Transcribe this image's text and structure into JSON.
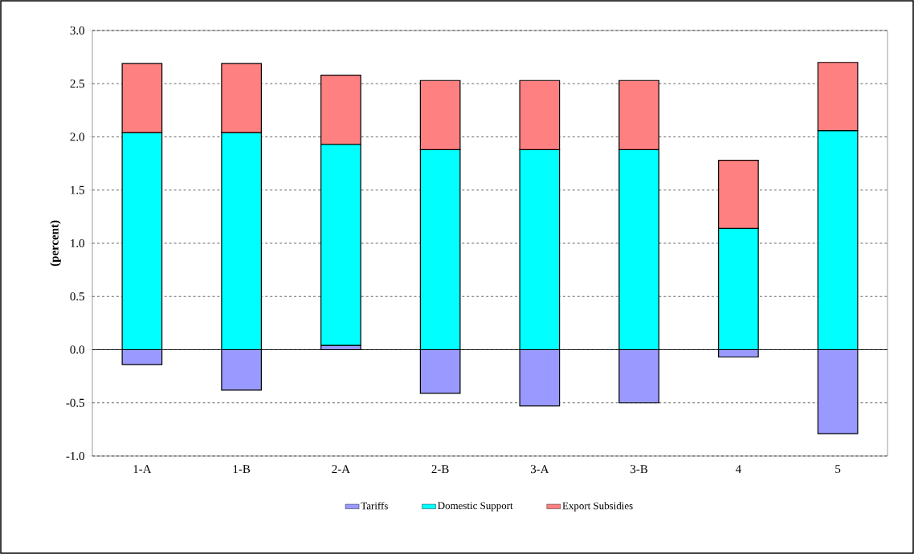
{
  "chart_data": {
    "type": "bar",
    "stacked": true,
    "ylabel": "(percent)",
    "categories": [
      "1-A",
      "1-B",
      "2-A",
      "2-B",
      "3-A",
      "3-B",
      "4",
      "5"
    ],
    "series": [
      {
        "name": "Tariffs",
        "color": "#9999ff",
        "values": [
          -0.14,
          -0.38,
          0.04,
          -0.41,
          -0.53,
          -0.5,
          -0.07,
          -0.79
        ]
      },
      {
        "name": "Domestic Support",
        "color": "#00ffff",
        "values": [
          2.04,
          2.04,
          1.89,
          1.88,
          1.88,
          1.88,
          1.14,
          2.06
        ]
      },
      {
        "name": "Export Subsidies",
        "color": "#ff8080",
        "values": [
          0.65,
          0.65,
          0.65,
          0.65,
          0.65,
          0.65,
          0.64,
          0.64
        ]
      }
    ],
    "ylim": [
      -1,
      3
    ],
    "yticks": [
      {
        "value": -1,
        "label": "-1.0"
      },
      {
        "value": -0.5,
        "label": "-0.5"
      },
      {
        "value": 0,
        "label": "0.0"
      },
      {
        "value": 0.5,
        "label": "0.5"
      },
      {
        "value": 1,
        "label": "1.0"
      },
      {
        "value": 1.5,
        "label": "1.5"
      },
      {
        "value": 2,
        "label": "2.0"
      },
      {
        "value": 2.5,
        "label": "2.5"
      },
      {
        "value": 3,
        "label": "3.0"
      }
    ],
    "grid": "y",
    "legend": "bottom"
  }
}
